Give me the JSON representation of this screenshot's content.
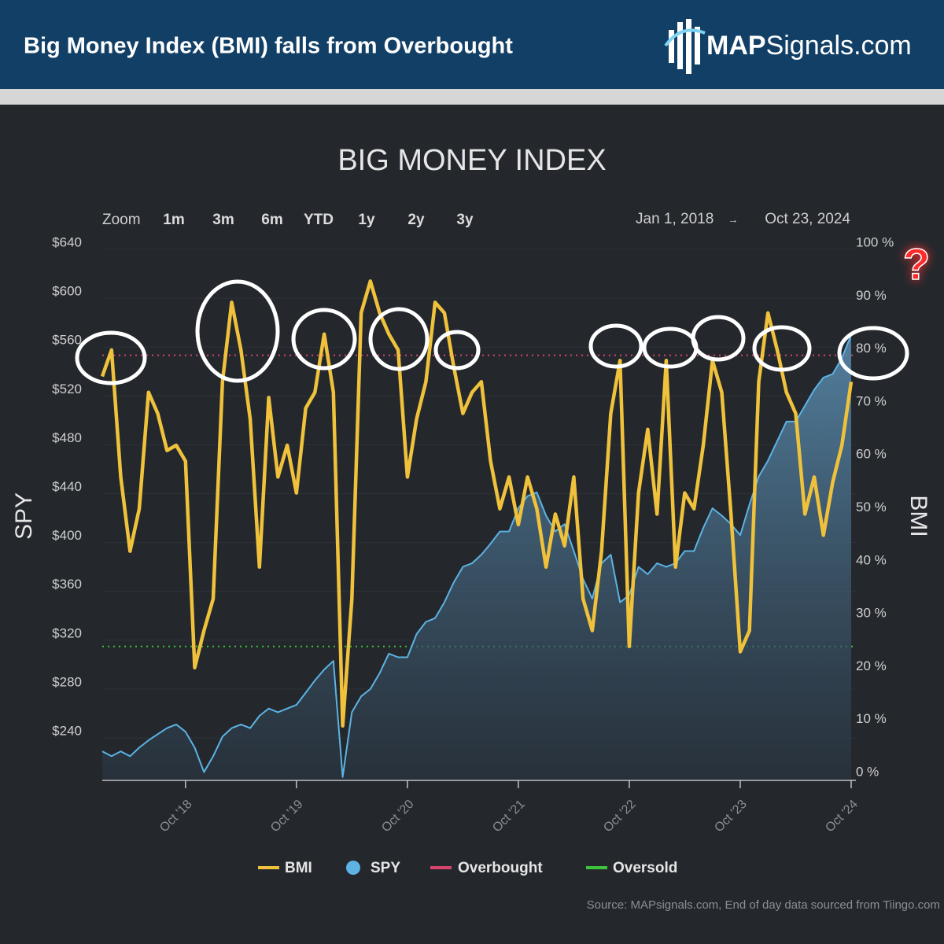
{
  "header": {
    "title": "Big Money Index (BMI) falls from Overbought",
    "logo_bold": "MAP",
    "logo_rest": "Signals.com"
  },
  "chart_data": {
    "type": "line",
    "title": "BIG MONEY INDEX",
    "zoom": {
      "label": "Zoom",
      "buttons": [
        "1m",
        "3m",
        "6m",
        "YTD",
        "1y",
        "2y",
        "3y"
      ]
    },
    "range": {
      "from": "Jan 1, 2018",
      "arrow": "→",
      "to": "Oct 23, 2024"
    },
    "y_label": "SPY",
    "y2_label": "BMI",
    "x": [
      "2018-01",
      "2018-02",
      "2018-03",
      "2018-04",
      "2018-05",
      "2018-06",
      "2018-07",
      "2018-08",
      "2018-09",
      "2018-10",
      "2018-11",
      "2018-12",
      "2019-01",
      "2019-02",
      "2019-03",
      "2019-04",
      "2019-05",
      "2019-06",
      "2019-07",
      "2019-08",
      "2019-09",
      "2019-10",
      "2019-11",
      "2019-12",
      "2020-01",
      "2020-02",
      "2020-03",
      "2020-04",
      "2020-05",
      "2020-06",
      "2020-07",
      "2020-08",
      "2020-09",
      "2020-10",
      "2020-11",
      "2020-12",
      "2021-01",
      "2021-02",
      "2021-03",
      "2021-04",
      "2021-05",
      "2021-06",
      "2021-07",
      "2021-08",
      "2021-09",
      "2021-10",
      "2021-11",
      "2021-12",
      "2022-01",
      "2022-02",
      "2022-03",
      "2022-04",
      "2022-05",
      "2022-06",
      "2022-07",
      "2022-08",
      "2022-09",
      "2022-10",
      "2022-11",
      "2022-12",
      "2023-01",
      "2023-02",
      "2023-03",
      "2023-04",
      "2023-05",
      "2023-06",
      "2023-07",
      "2023-08",
      "2023-09",
      "2023-10",
      "2023-11",
      "2023-12",
      "2024-01",
      "2024-02",
      "2024-03",
      "2024-04",
      "2024-05",
      "2024-06",
      "2024-07",
      "2024-08",
      "2024-09",
      "2024-10"
    ],
    "xlim": [
      "2018-01",
      "2024-10"
    ],
    "xticks": [
      {
        "value": "2018-10",
        "label": "Oct '18"
      },
      {
        "value": "2019-10",
        "label": "Oct '19"
      },
      {
        "value": "2020-10",
        "label": "Oct '20"
      },
      {
        "value": "2021-10",
        "label": "Oct '21"
      },
      {
        "value": "2022-10",
        "label": "Oct '22"
      },
      {
        "value": "2023-10",
        "label": "Oct '23"
      },
      {
        "value": "2024-10",
        "label": "Oct '24"
      }
    ],
    "ylim": [
      206.5,
      640
    ],
    "yticks": [
      {
        "value": 240,
        "label": "$240"
      },
      {
        "value": 280,
        "label": "$280"
      },
      {
        "value": 320,
        "label": "$320"
      },
      {
        "value": 360,
        "label": "$360"
      },
      {
        "value": 400,
        "label": "$400"
      },
      {
        "value": 440,
        "label": "$440"
      },
      {
        "value": 480,
        "label": "$480"
      },
      {
        "value": 520,
        "label": "$520"
      },
      {
        "value": 560,
        "label": "$560"
      },
      {
        "value": 600,
        "label": "$600"
      },
      {
        "value": 640,
        "label": "$640"
      }
    ],
    "y2lim": [
      0,
      100
    ],
    "y2ticks": [
      {
        "value": 0,
        "label": "0 %"
      },
      {
        "value": 10,
        "label": "10 %"
      },
      {
        "value": 20,
        "label": "20 %"
      },
      {
        "value": 30,
        "label": "30 %"
      },
      {
        "value": 40,
        "label": "40 %"
      },
      {
        "value": 50,
        "label": "50 %"
      },
      {
        "value": 60,
        "label": "60 %"
      },
      {
        "value": 70,
        "label": "70 %"
      },
      {
        "value": 80,
        "label": "80 %"
      },
      {
        "value": 90,
        "label": "90 %"
      },
      {
        "value": 100,
        "label": "100 %"
      }
    ],
    "grid": true,
    "series": [
      {
        "name": "BMI",
        "color": "#f0c23c",
        "axis": "y2",
        "values": [
          76,
          81,
          57,
          43,
          51,
          73,
          69,
          62,
          63,
          60,
          21,
          28,
          34,
          75,
          90,
          81,
          68,
          40,
          72,
          57,
          63,
          54,
          70,
          73,
          84,
          73,
          10,
          34,
          88,
          94,
          88,
          84,
          81,
          57,
          68,
          75,
          90,
          88,
          78,
          69,
          73,
          75,
          60,
          51,
          57,
          48,
          57,
          51,
          40,
          50,
          44,
          57,
          34,
          28,
          43,
          69,
          79,
          25,
          54,
          66,
          50,
          79,
          40,
          54,
          51,
          63,
          79,
          73,
          50,
          24,
          28,
          75,
          88,
          81,
          73,
          69,
          50,
          57,
          46,
          56,
          63,
          75
        ]
      },
      {
        "name": "SPY",
        "color": "#5cb3e4",
        "area": true,
        "values": [
          229,
          225,
          229,
          225,
          232,
          238,
          243,
          248,
          251,
          245,
          232,
          212,
          225,
          241,
          248,
          251,
          248,
          258,
          264,
          261,
          264,
          267,
          277,
          287,
          296,
          303,
          208,
          261,
          274,
          280,
          293,
          309,
          306,
          306,
          325,
          335,
          338,
          351,
          367,
          380,
          383,
          390,
          399,
          409,
          409,
          428,
          438,
          441,
          422,
          409,
          415,
          393,
          370,
          354,
          383,
          390,
          351,
          357,
          380,
          374,
          383,
          380,
          383,
          393,
          393,
          412,
          428,
          422,
          415,
          406,
          431,
          454,
          467,
          483,
          499,
          499,
          512,
          525,
          535,
          538,
          551,
          570
        ]
      }
    ],
    "thresholds": [
      {
        "name": "Overbought",
        "color": "#d8436c",
        "axis": "y2",
        "value": 80
      },
      {
        "name": "Oversold",
        "color": "#3cc43c",
        "axis": "y2",
        "value": 25
      }
    ],
    "annotation": "?",
    "source": "Source: MAPsignals.com, End of day data sourced from Tiingo.com"
  }
}
